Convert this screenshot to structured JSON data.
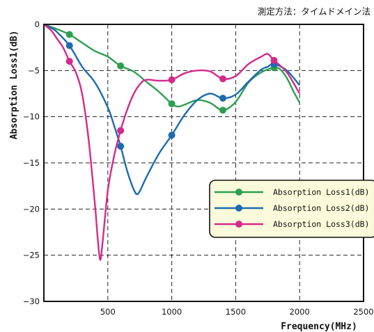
{
  "annotation": "測定方法：タイムドメイン法",
  "chart_data": {
    "type": "line",
    "title": "",
    "xlabel": "Frequency(MHz)",
    "ylabel": "Absorption Loss1(dB)",
    "xlim": [
      0,
      2500
    ],
    "ylim": [
      -30,
      0
    ],
    "xticks": [
      "500",
      "1000",
      "1500",
      "2000",
      "2500"
    ],
    "yticks": [
      "0",
      "−5",
      "−10",
      "−15",
      "−20",
      "−25",
      "−30"
    ],
    "grid": "dashed",
    "legend_position": "right",
    "series": [
      {
        "name": "Absorption Loss1(dB)",
        "color": "#2e9e4f",
        "x": [
          0,
          60,
          100,
          200,
          300,
          400,
          500,
          600,
          700,
          800,
          900,
          1000,
          1050,
          1100,
          1200,
          1300,
          1400,
          1500,
          1600,
          1700,
          1800,
          1850,
          1900,
          1950,
          2000
        ],
        "y": [
          0,
          -0.3,
          -0.5,
          -1.1,
          -2.0,
          -2.9,
          -3.5,
          -4.5,
          -5.1,
          -6.2,
          -7.3,
          -8.6,
          -8.9,
          -8.7,
          -8.2,
          -8.5,
          -9.3,
          -8.4,
          -6.3,
          -5.2,
          -4.7,
          -4.9,
          -5.8,
          -7.2,
          -8.5
        ],
        "markers_x": [
          200,
          600,
          1000,
          1400,
          1800
        ],
        "markers_y": [
          -1.1,
          -4.5,
          -8.6,
          -9.3,
          -4.7
        ]
      },
      {
        "name": "Absorption Loss2(dB)",
        "color": "#1c6ab0",
        "x": [
          0,
          60,
          100,
          200,
          300,
          400,
          500,
          550,
          600,
          650,
          700,
          730,
          760,
          800,
          900,
          1000,
          1100,
          1200,
          1300,
          1400,
          1500,
          1600,
          1700,
          1750,
          1800,
          1900,
          2000
        ],
        "y": [
          0,
          -0.4,
          -0.8,
          -2.3,
          -4.6,
          -6.3,
          -9.0,
          -11.0,
          -13.2,
          -15.8,
          -17.8,
          -18.4,
          -17.8,
          -16.6,
          -14.0,
          -12.0,
          -9.8,
          -8.2,
          -7.5,
          -8.0,
          -7.6,
          -6.2,
          -4.9,
          -4.6,
          -4.3,
          -5.0,
          -6.6
        ],
        "markers_x": [
          200,
          600,
          1000,
          1400,
          1800
        ],
        "markers_y": [
          -2.3,
          -13.2,
          -12.0,
          -8.0,
          -4.3
        ]
      },
      {
        "name": "Absorption Loss3(dB)",
        "color": "#d42a8a",
        "x": [
          0,
          60,
          100,
          150,
          200,
          250,
          300,
          350,
          400,
          420,
          440,
          460,
          500,
          550,
          600,
          650,
          700,
          750,
          800,
          900,
          1000,
          1100,
          1200,
          1300,
          1400,
          1500,
          1600,
          1700,
          1750,
          1800,
          1900,
          2000
        ],
        "y": [
          0,
          -0.7,
          -1.5,
          -2.5,
          -4.0,
          -5.2,
          -7.6,
          -12.5,
          -19.6,
          -23.0,
          -25.5,
          -23.5,
          -18.0,
          -14.2,
          -11.5,
          -9.3,
          -7.6,
          -6.5,
          -6.0,
          -6.1,
          -6.0,
          -5.3,
          -5.0,
          -5.1,
          -5.9,
          -5.6,
          -4.3,
          -3.5,
          -3.2,
          -3.9,
          -5.2,
          -7.5
        ],
        "markers_x": [
          200,
          600,
          1000,
          1400,
          1800
        ],
        "markers_y": [
          -4.0,
          -11.5,
          -6.0,
          -5.9,
          -3.9
        ]
      }
    ]
  }
}
